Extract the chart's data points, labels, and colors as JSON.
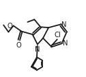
{
  "bg_color": "#ffffff",
  "line_color": "#1a1a1a",
  "lw": 1.3,
  "fontsize": 7.2,
  "fig_width": 1.26,
  "fig_height": 1.13,
  "dpi": 100,
  "xlim": [
    0.3,
    7.2
  ],
  "ylim": [
    1.8,
    7.5
  ]
}
